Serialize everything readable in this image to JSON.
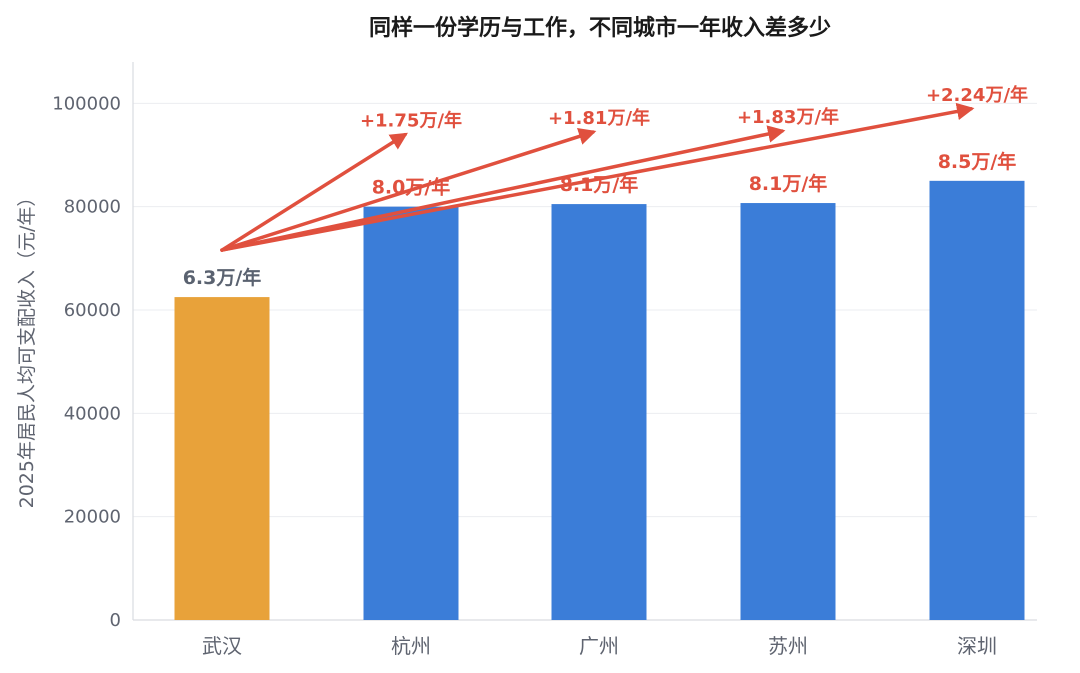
{
  "chart_data": {
    "type": "bar",
    "title": "同样一份学历与工作，不同城市一年收入差多少",
    "ylabel": "2025年居民人均可支配收入（元/年）",
    "xlabel": "",
    "ylim": [
      0,
      108000
    ],
    "yticks": [
      0,
      20000,
      40000,
      60000,
      80000,
      100000
    ],
    "grid": true,
    "categories": [
      "武汉",
      "杭州",
      "广州",
      "苏州",
      "深圳"
    ],
    "values": [
      62500,
      80000,
      80500,
      80700,
      85000
    ],
    "value_labels": [
      "6.3万/年",
      "8.0万/年",
      "8.1万/年",
      "8.1万/年",
      "8.5万/年"
    ],
    "bar_colors": [
      "#E8A23A",
      "#3B7DD8",
      "#3B7DD8",
      "#3B7DD8",
      "#3B7DD8"
    ],
    "baseline_label_color": "#5a6270",
    "value_label_color": "#E0503E",
    "arrow_color": "#E0503E",
    "arrows": [
      {
        "from": "武汉",
        "to": "杭州",
        "label": "+1.75万/年"
      },
      {
        "from": "武汉",
        "to": "广州",
        "label": "+1.81万/年"
      },
      {
        "from": "武汉",
        "to": "苏州",
        "label": "+1.83万/年"
      },
      {
        "from": "武汉",
        "to": "深圳",
        "label": "+2.24万/年"
      }
    ]
  }
}
